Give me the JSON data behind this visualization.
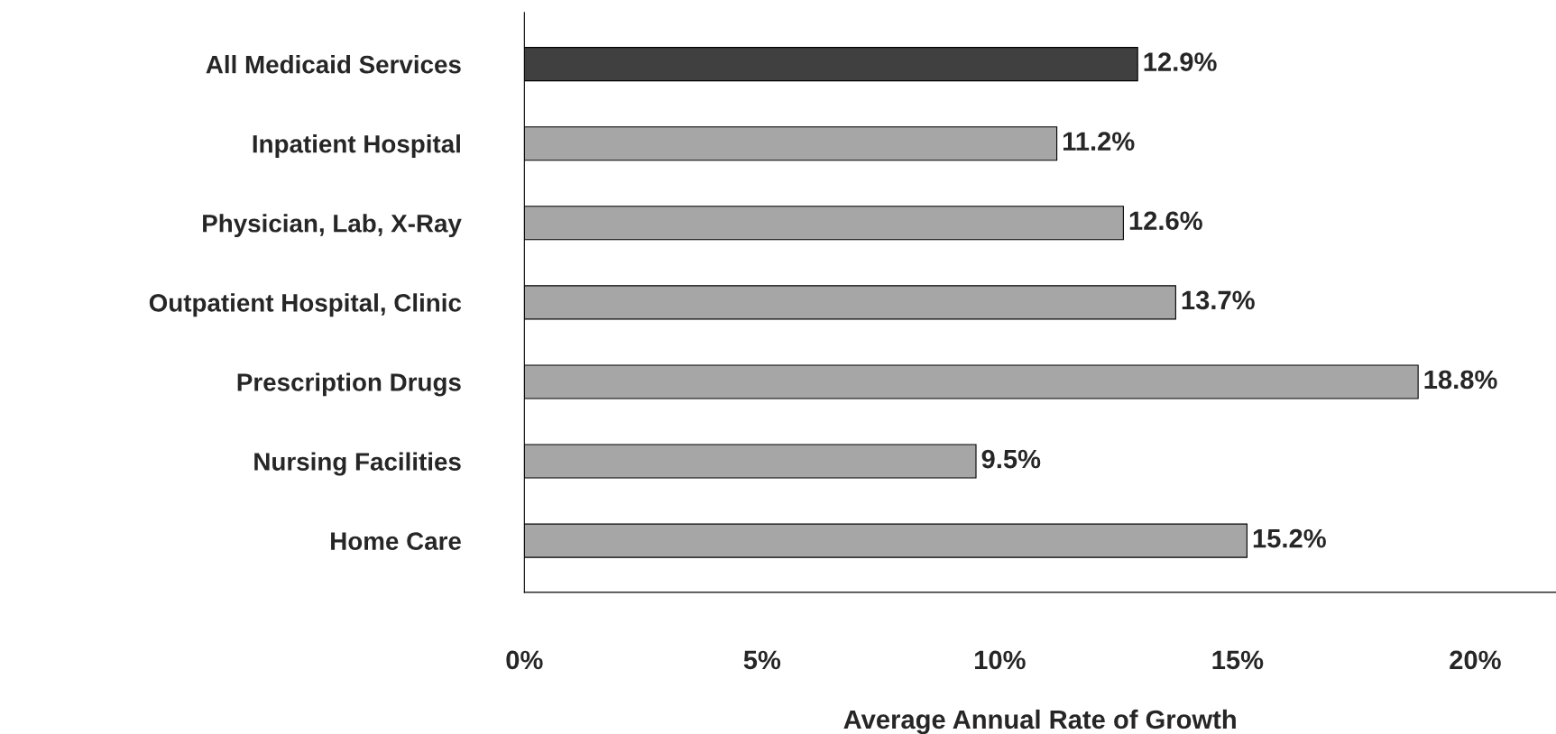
{
  "chart_data": {
    "type": "bar",
    "orientation": "horizontal",
    "categories": [
      "All Medicaid Services",
      "Inpatient Hospital",
      "Physician, Lab, X-Ray",
      "Outpatient Hospital, Clinic",
      "Prescription Drugs",
      "Nursing Facilities",
      "Home Care"
    ],
    "values": [
      12.9,
      11.2,
      12.6,
      13.7,
      18.8,
      9.5,
      15.2
    ],
    "value_labels": [
      "12.9%",
      "11.2%",
      "12.6%",
      "13.7%",
      "18.8%",
      "9.5%",
      "15.2%"
    ],
    "colors": [
      "#404040",
      "#a6a6a6",
      "#a6a6a6",
      "#a6a6a6",
      "#a6a6a6",
      "#a6a6a6",
      "#a6a6a6"
    ],
    "xlim": [
      0,
      21.7
    ],
    "xticks": [
      {
        "value": 0,
        "label": "0%"
      },
      {
        "value": 5,
        "label": "5%"
      },
      {
        "value": 10,
        "label": "10%"
      },
      {
        "value": 15,
        "label": "15%"
      },
      {
        "value": 20,
        "label": "20%"
      }
    ],
    "xlabel": "Average Annual Rate of Growth",
    "grid": false,
    "legend": false
  }
}
